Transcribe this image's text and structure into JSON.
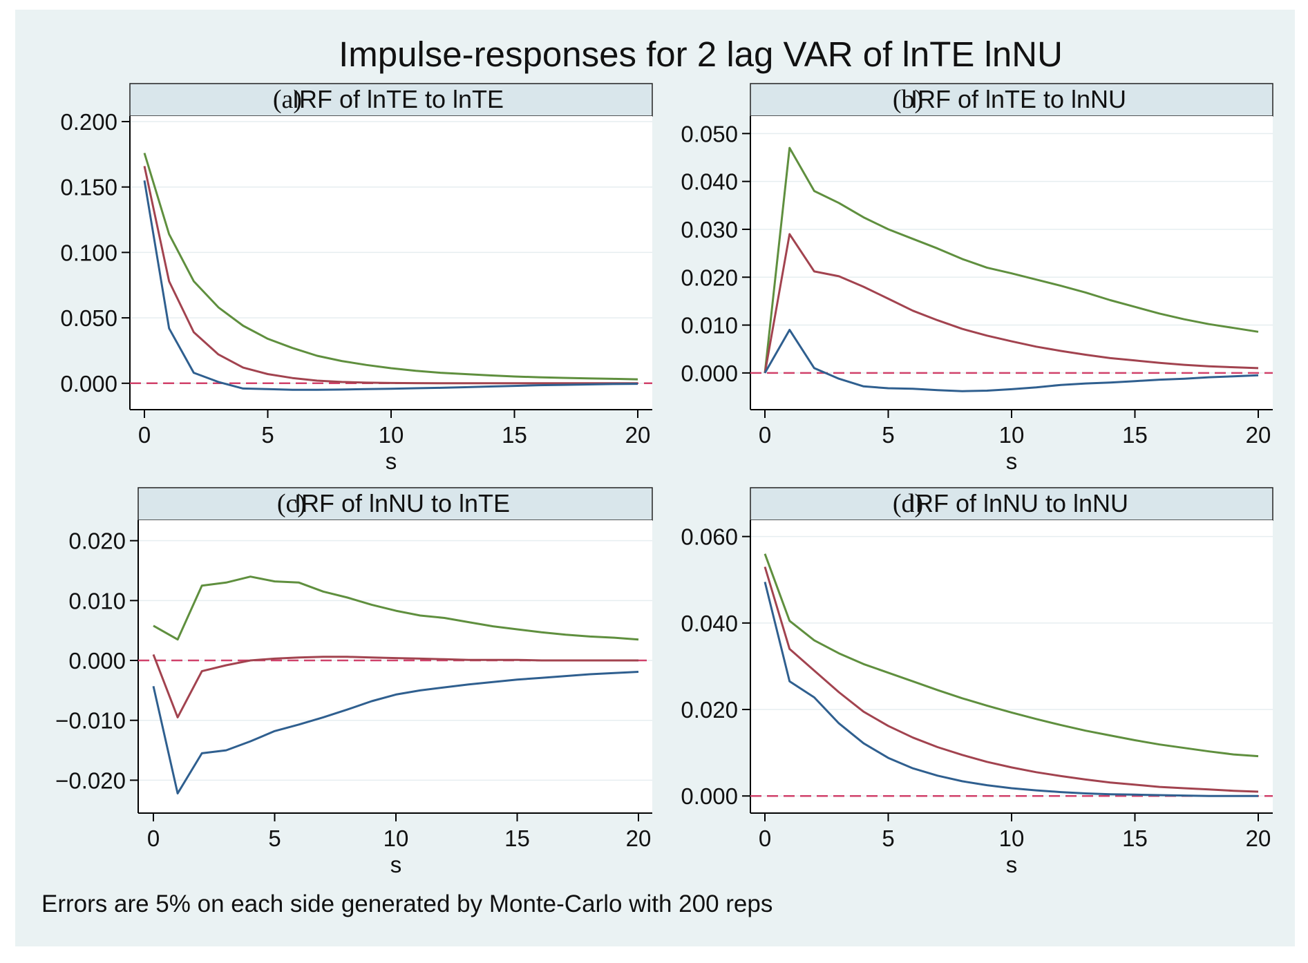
{
  "figure": {
    "title": "Impulse-responses for 2 lag VAR of lnTE lnNU",
    "note": "Errors are 5% on each side generated by Monte-Carlo with 200 reps",
    "colors": {
      "outer_background": "#eaf2f3",
      "plot_background": "#ffffff",
      "header_fill": "#d9e6eb",
      "upper_band": "#5f8f3e",
      "irf": "#a2434f",
      "lower_band": "#2f5f8f",
      "zero_line": "#d0416a",
      "axis": "#000000"
    }
  },
  "chart_data": [
    {
      "type": "line",
      "panel_label": "(a)",
      "title": "IRF of lnTE to lnTE",
      "xlabel": "s",
      "ylabel": "",
      "xlim": [
        0,
        20
      ],
      "ylim": [
        -0.017,
        0.2
      ],
      "xticks": [
        0,
        5,
        10,
        15,
        20
      ],
      "xtick_labels": [
        "0",
        "5",
        "10",
        "15",
        "20"
      ],
      "yticks": [
        0,
        0.05,
        0.1,
        0.15,
        0.2
      ],
      "ytick_labels": [
        "0.000",
        "0.050",
        "0.100",
        "0.150",
        "0.200"
      ],
      "x": [
        0,
        1,
        2,
        3,
        4,
        5,
        6,
        7,
        8,
        9,
        10,
        11,
        12,
        13,
        14,
        15,
        16,
        17,
        18,
        19,
        20
      ],
      "series": [
        {
          "name": "upper",
          "values": [
            0.176,
            0.114,
            0.078,
            0.058,
            0.044,
            0.034,
            0.027,
            0.021,
            0.017,
            0.014,
            0.0115,
            0.0095,
            0.008,
            0.007,
            0.006,
            0.0052,
            0.0046,
            0.0041,
            0.0037,
            0.0034,
            0.003
          ]
        },
        {
          "name": "irf",
          "values": [
            0.166,
            0.078,
            0.039,
            0.022,
            0.012,
            0.007,
            0.004,
            0.002,
            0.001,
            0.0005,
            0.0002,
            0.0001,
            0.0,
            0.0,
            0.0,
            0.0,
            0.0,
            0.0,
            0.0,
            0.0,
            0.0
          ]
        },
        {
          "name": "lower",
          "values": [
            0.155,
            0.042,
            0.008,
            0.001,
            -0.004,
            -0.0045,
            -0.005,
            -0.005,
            -0.0048,
            -0.0045,
            -0.0042,
            -0.0038,
            -0.0035,
            -0.003,
            -0.0025,
            -0.002,
            -0.0015,
            -0.0012,
            -0.0009,
            -0.0006,
            -0.0004
          ]
        }
      ],
      "reference_line": 0
    },
    {
      "type": "line",
      "panel_label": "(b)",
      "title": "IRF of lnTE to lnNU",
      "xlabel": "s",
      "ylabel": "",
      "xlim": [
        0,
        20
      ],
      "ylim": [
        -0.0068,
        0.0525
      ],
      "xticks": [
        0,
        5,
        10,
        15,
        20
      ],
      "xtick_labels": [
        "0",
        "5",
        "10",
        "15",
        "20"
      ],
      "yticks": [
        0,
        0.01,
        0.02,
        0.03,
        0.04,
        0.05
      ],
      "ytick_labels": [
        "0.000",
        "0.010",
        "0.020",
        "0.030",
        "0.040",
        "0.050"
      ],
      "x": [
        0,
        1,
        2,
        3,
        4,
        5,
        6,
        7,
        8,
        9,
        10,
        11,
        12,
        13,
        14,
        15,
        16,
        17,
        18,
        19,
        20
      ],
      "series": [
        {
          "name": "upper",
          "values": [
            0.0,
            0.047,
            0.038,
            0.0355,
            0.0325,
            0.03,
            0.028,
            0.026,
            0.0238,
            0.022,
            0.0208,
            0.0195,
            0.0182,
            0.0168,
            0.0152,
            0.0138,
            0.0124,
            0.0112,
            0.0102,
            0.0094,
            0.0086
          ]
        },
        {
          "name": "irf",
          "values": [
            0.0,
            0.029,
            0.0212,
            0.0202,
            0.018,
            0.0155,
            0.013,
            0.011,
            0.0092,
            0.0078,
            0.0066,
            0.0055,
            0.0046,
            0.0038,
            0.0031,
            0.0026,
            0.0021,
            0.0017,
            0.0014,
            0.0012,
            0.001
          ]
        },
        {
          "name": "lower",
          "values": [
            0.0,
            0.009,
            0.001,
            -0.0012,
            -0.0028,
            -0.0032,
            -0.0033,
            -0.0036,
            -0.0038,
            -0.0037,
            -0.0034,
            -0.003,
            -0.0025,
            -0.0022,
            -0.002,
            -0.0017,
            -0.0014,
            -0.0012,
            -0.0009,
            -0.0007,
            -0.0005
          ]
        }
      ],
      "reference_line": 0
    },
    {
      "type": "line",
      "panel_label": "(c)",
      "title": "IRF of lnNU to lnTE",
      "xlabel": "s",
      "ylabel": "",
      "xlim": [
        0,
        20
      ],
      "ylim": [
        -0.0248,
        0.0225
      ],
      "xticks": [
        0,
        5,
        10,
        15,
        20
      ],
      "xtick_labels": [
        "0",
        "5",
        "10",
        "15",
        "20"
      ],
      "yticks": [
        -0.02,
        -0.01,
        0,
        0.01,
        0.02
      ],
      "ytick_labels": [
        "−0.020",
        "−0.010",
        "0.000",
        "0.010",
        "0.020"
      ],
      "x": [
        0,
        1,
        2,
        3,
        4,
        5,
        6,
        7,
        8,
        9,
        10,
        11,
        12,
        13,
        14,
        15,
        16,
        17,
        18,
        19,
        20
      ],
      "series": [
        {
          "name": "upper",
          "values": [
            0.0058,
            0.0035,
            0.0125,
            0.013,
            0.014,
            0.0132,
            0.013,
            0.0115,
            0.0105,
            0.0093,
            0.0083,
            0.0075,
            0.0071,
            0.0064,
            0.0057,
            0.0052,
            0.0047,
            0.0043,
            0.004,
            0.0038,
            0.0035
          ]
        },
        {
          "name": "irf",
          "values": [
            0.001,
            -0.0095,
            -0.0018,
            -0.0008,
            0.0,
            0.0003,
            0.0005,
            0.0006,
            0.0006,
            0.0005,
            0.0004,
            0.0003,
            0.0002,
            0.0001,
            0.0001,
            0.0001,
            0.0,
            0.0,
            0.0,
            0.0,
            0.0
          ]
        },
        {
          "name": "lower",
          "values": [
            -0.0043,
            -0.0222,
            -0.0155,
            -0.015,
            -0.0135,
            -0.0118,
            -0.0107,
            -0.0095,
            -0.0082,
            -0.0068,
            -0.0057,
            -0.005,
            -0.0045,
            -0.004,
            -0.0036,
            -0.0032,
            -0.0029,
            -0.0026,
            -0.0023,
            -0.0021,
            -0.0019
          ]
        }
      ],
      "reference_line": 0
    },
    {
      "type": "line",
      "panel_label": "(d)",
      "title": "IRF of lnNU to lnNU",
      "xlabel": "s",
      "ylabel": "",
      "xlim": [
        0,
        20
      ],
      "ylim": [
        -0.003,
        0.0625
      ],
      "xticks": [
        0,
        5,
        10,
        15,
        20
      ],
      "xtick_labels": [
        "0",
        "5",
        "10",
        "15",
        "20"
      ],
      "yticks": [
        0,
        0.02,
        0.04,
        0.06
      ],
      "ytick_labels": [
        "0.000",
        "0.020",
        "0.040",
        "0.060"
      ],
      "x": [
        0,
        1,
        2,
        3,
        4,
        5,
        6,
        7,
        8,
        9,
        10,
        11,
        12,
        13,
        14,
        15,
        16,
        17,
        18,
        19,
        20
      ],
      "series": [
        {
          "name": "upper",
          "values": [
            0.056,
            0.0405,
            0.036,
            0.033,
            0.0305,
            0.0285,
            0.0265,
            0.0245,
            0.0226,
            0.0209,
            0.0193,
            0.0178,
            0.0164,
            0.0151,
            0.014,
            0.0129,
            0.0119,
            0.0111,
            0.0103,
            0.0096,
            0.0092
          ]
        },
        {
          "name": "irf",
          "values": [
            0.053,
            0.034,
            0.029,
            0.024,
            0.0195,
            0.0162,
            0.0135,
            0.0113,
            0.0095,
            0.0079,
            0.0066,
            0.0055,
            0.0046,
            0.0038,
            0.0031,
            0.0026,
            0.0021,
            0.0018,
            0.0015,
            0.0012,
            0.001
          ]
        },
        {
          "name": "lower",
          "values": [
            0.0495,
            0.0265,
            0.0228,
            0.0168,
            0.0122,
            0.0088,
            0.0064,
            0.0047,
            0.0034,
            0.0025,
            0.0018,
            0.0013,
            0.0009,
            0.0006,
            0.0004,
            0.0003,
            0.0002,
            0.0001,
            0.0,
            0.0,
            0.0
          ]
        }
      ],
      "reference_line": 0
    }
  ]
}
